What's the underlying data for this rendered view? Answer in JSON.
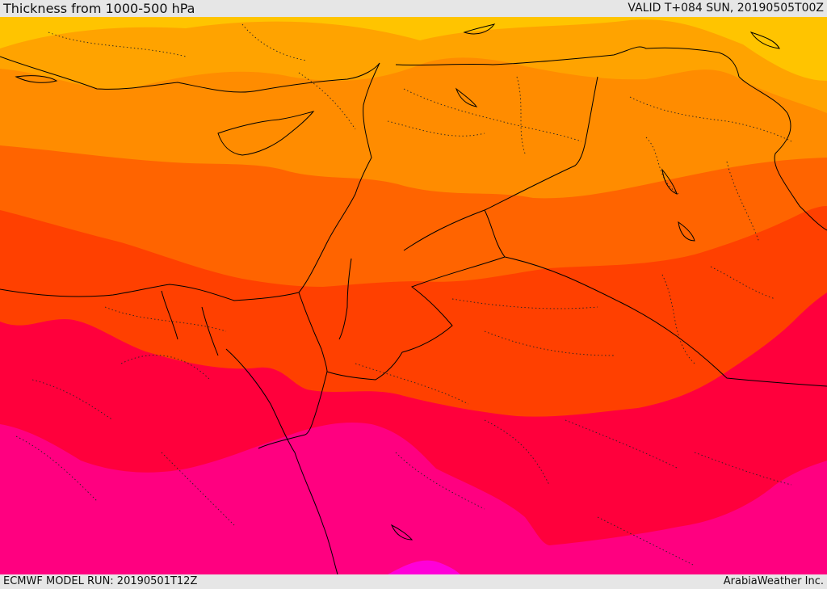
{
  "header": {
    "title": "Thickness from 1000-500 hPa",
    "valid": "VALID T+084 SUN, 20190505T00Z"
  },
  "footer": {
    "model_run": "ECMWF MODEL RUN: 20190501T12Z",
    "brand": "ArabiaWeather Inc."
  },
  "map": {
    "field": "1000-500 hPa thickness",
    "colors": {
      "band_yellow": "#ffc400",
      "band_light_orange": "#ffa300",
      "band_orange": "#ff8c00",
      "band_dark_orange": "#ff6400",
      "band_red_orange": "#ff4000",
      "band_red": "#ff003c",
      "band_magenta": "#ff0080",
      "band_violet": "#ff00d8",
      "border_line": "#000000"
    }
  }
}
